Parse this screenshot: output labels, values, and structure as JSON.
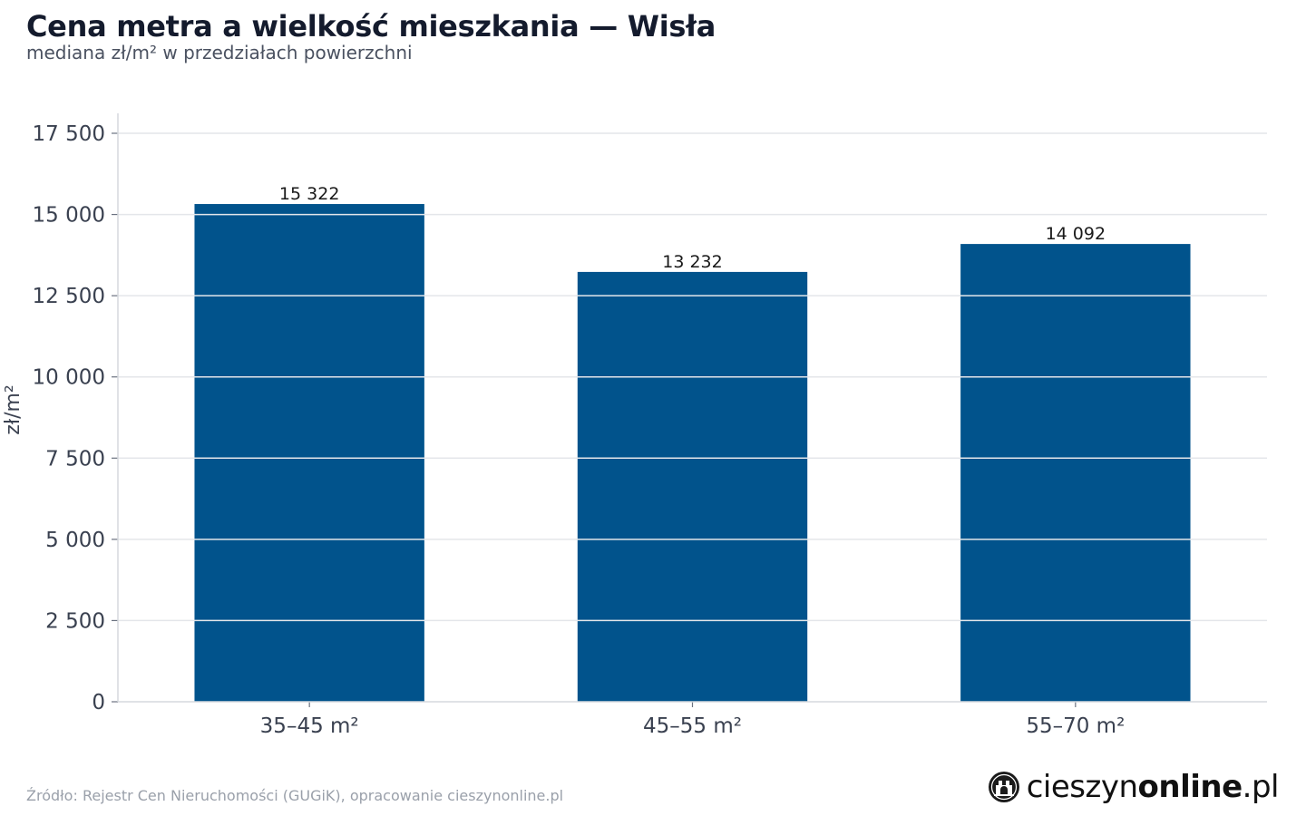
{
  "title": "Cena metra a wielkość mieszkania — Wisła",
  "subtitle": "mediana zł/m² w przedziałach powierzchni",
  "source": "Źródło: Rejestr Cen Nieruchomości (GUGiK), opracowanie cieszynonline.pl",
  "logo": {
    "text_light": "cieszyn",
    "text_bold": "online",
    "text_suffix": ".pl",
    "icon": "city-emblem-icon"
  },
  "colors": {
    "bar": "#01538c",
    "grid": "#e4e6ea",
    "axis": "#d6d9de",
    "tick_text": "#3a4150",
    "label_text": "#1a1a1a"
  },
  "chart_data": {
    "type": "bar",
    "title": "Cena metra a wielkość mieszkania — Wisła",
    "subtitle": "mediana zł/m² w przedziałach powierzchni",
    "categories": [
      "35–45 m²",
      "45–55 m²",
      "55–70 m²"
    ],
    "values": [
      15322,
      13232,
      14092
    ],
    "value_labels": [
      "15 322",
      "13 232",
      "14 092"
    ],
    "xlabel": "",
    "ylabel": "zł/m²",
    "ylim": [
      0,
      17500
    ],
    "yticks": [
      0,
      2500,
      5000,
      7500,
      10000,
      12500,
      15000,
      17500
    ],
    "ytick_labels": [
      "0",
      "2 500",
      "5 000",
      "7 500",
      "10 000",
      "12 500",
      "15 000",
      "17 500"
    ],
    "grid": true,
    "legend": "none"
  }
}
